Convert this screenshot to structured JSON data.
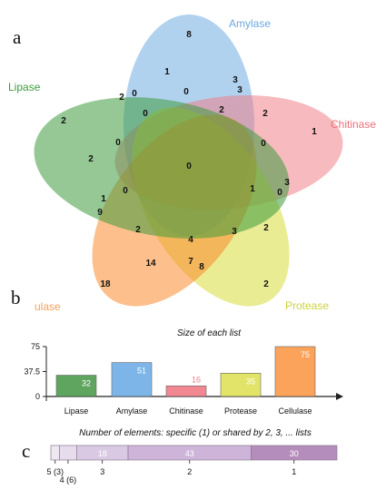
{
  "panel_letters": {
    "a": "a",
    "b": "b",
    "c": "c"
  },
  "venn": {
    "sets": [
      {
        "name": "Amylase",
        "color": "#6aa8e0",
        "label_color": "#6aa8e0"
      },
      {
        "name": "Chitinase",
        "color": "#f07b85",
        "label_color": "#ef6f79"
      },
      {
        "name": "Protease",
        "color": "#d7dc3a",
        "label_color": "#cdd23e"
      },
      {
        "name": "ulase",
        "color": "#fb8a2b",
        "label_color": "#f5a25c"
      },
      {
        "name": "Lipase",
        "color": "#3e9a3e",
        "label_color": "#3e9a3e"
      }
    ],
    "region_values": [
      "8",
      "1",
      "3",
      "3",
      "2",
      "0",
      "0",
      "2",
      "2",
      "1",
      "0",
      "2",
      "0",
      "2",
      "0",
      "0",
      "3",
      "1",
      "0",
      "0",
      "1",
      "9",
      "2",
      "3",
      "2",
      "4",
      "7",
      "8",
      "14",
      "18",
      "2"
    ]
  },
  "chart_data": [
    {
      "type": "bar",
      "title": "Size of each list",
      "categories": [
        "Lipase",
        "Amylase",
        "Chitinase",
        "Protease",
        "Cellulase"
      ],
      "values": [
        32,
        51,
        16,
        35,
        75
      ],
      "value_labels": [
        "32",
        "51",
        "16",
        "35",
        "75"
      ],
      "colors": [
        "#4e9c4e",
        "#6faee6",
        "#f07b85",
        "#dfe25a",
        "#fb9a4a"
      ],
      "yticks": [
        "0",
        "37.5",
        "75"
      ],
      "ylim": [
        0,
        75
      ]
    },
    {
      "type": "bar",
      "title": "Number of elements: specific (1) or shared by 2, 3, ... lists",
      "categories": [
        "5 (3)",
        "4 (6)",
        "3",
        "2",
        "1"
      ],
      "values": [
        3,
        6,
        18,
        43,
        30
      ],
      "value_labels": [
        "",
        "",
        "18",
        "43",
        "30"
      ],
      "colors": [
        "#eee8f2",
        "#e6dcec",
        "#d9c9e3",
        "#cdb4d8",
        "#b58dbd"
      ]
    }
  ]
}
